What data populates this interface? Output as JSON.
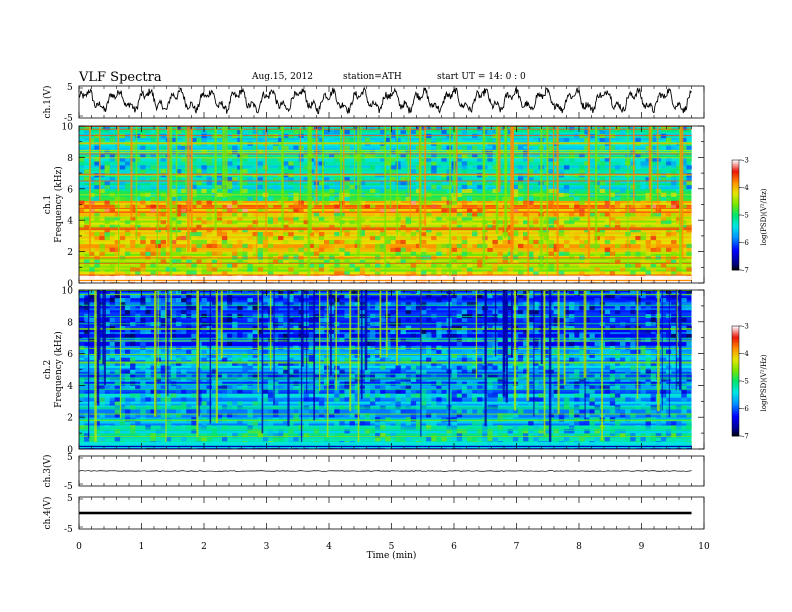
{
  "header": {
    "title": "VLF  Spectra",
    "date": "Aug.15, 2012",
    "station": "station=ATH",
    "start_time": "start  UT  =    14: 0  : 0"
  },
  "chart_data": [
    {
      "type": "line",
      "panel": "ch1-waveform",
      "ylabel": "ch.1(V)",
      "yticks": [
        "5",
        "-5"
      ],
      "ylim": [
        -5,
        5
      ],
      "description_values": {
        "x_start_min": 0,
        "x_end_min": 9.8,
        "amplitude_range_V": [
          -4,
          5
        ]
      }
    },
    {
      "type": "heatmap",
      "panel": "ch1-spectrogram",
      "ylabel": "Frequency  (kHz)",
      "channel_label": "ch.1",
      "yticks": [
        "0",
        "2",
        "4",
        "6",
        "8",
        "10"
      ],
      "ylim": [
        0,
        10
      ],
      "x_range_min": [
        0,
        9.8
      ],
      "colorbar": {
        "label": "log(PSD)(V²/Hz)",
        "ticks": [
          "-3",
          "-4",
          "-5",
          "-6",
          "-7"
        ],
        "range": [
          -7,
          -3
        ]
      },
      "bands": [
        {
          "freq_khz": [
            0.0,
            0.5
          ],
          "log_psd": -3.3
        },
        {
          "freq_khz": [
            0.5,
            2.0
          ],
          "log_psd": -4.4
        },
        {
          "freq_khz": [
            2.0,
            3.0
          ],
          "log_psd": -4.1
        },
        {
          "freq_khz": [
            3.0,
            4.5
          ],
          "log_psd": -4.3
        },
        {
          "freq_khz": [
            4.5,
            5.2
          ],
          "log_psd": -3.9
        },
        {
          "freq_khz": [
            5.2,
            6.0
          ],
          "log_psd": -4.9
        },
        {
          "freq_khz": [
            6.0,
            10.0
          ],
          "log_psd": -5.3
        }
      ]
    },
    {
      "type": "heatmap",
      "panel": "ch2-spectrogram",
      "ylabel": "Frequency  (kHz)",
      "channel_label": "ch.2",
      "yticks": [
        "0",
        "2",
        "4",
        "6",
        "8",
        "10"
      ],
      "ylim": [
        0,
        10
      ],
      "x_range_min": [
        0,
        9.8
      ],
      "colorbar": {
        "label": "log(PSD)(V²/Hz)",
        "ticks": [
          "-3",
          "-4",
          "-5",
          "-6",
          "-7"
        ],
        "range": [
          -7,
          -3
        ]
      },
      "bands": [
        {
          "freq_khz": [
            0.0,
            0.3
          ],
          "log_psd": -6.2
        },
        {
          "freq_khz": [
            0.3,
            1.5
          ],
          "log_psd": -5.3
        },
        {
          "freq_khz": [
            1.5,
            3.5
          ],
          "log_psd": -5.6
        },
        {
          "freq_khz": [
            3.5,
            5.0
          ],
          "log_psd": -5.9
        },
        {
          "freq_khz": [
            5.0,
            6.5
          ],
          "log_psd": -5.6
        },
        {
          "freq_khz": [
            6.5,
            10.0
          ],
          "log_psd": -6.1
        }
      ]
    },
    {
      "type": "line",
      "panel": "ch3-waveform",
      "ylabel": "ch.3(V)",
      "yticks": [
        "5",
        "-5"
      ],
      "ylim": [
        -5,
        5
      ],
      "description_values": {
        "level_V": 0,
        "x_start_min": 0,
        "x_end_min": 9.8
      }
    },
    {
      "type": "line",
      "panel": "ch4-waveform",
      "ylabel": "ch.4(V)",
      "yticks": [
        "5",
        "-5"
      ],
      "ylim": [
        -5,
        5
      ],
      "description_values": {
        "level_V": 0,
        "x_start_min": 0,
        "x_end_min": 9.8
      }
    }
  ],
  "x_axis": {
    "label": "Time  (min)",
    "ticks": [
      "0",
      "1",
      "2",
      "3",
      "4",
      "5",
      "6",
      "7",
      "8",
      "9",
      "10"
    ],
    "range": [
      0,
      10
    ]
  }
}
